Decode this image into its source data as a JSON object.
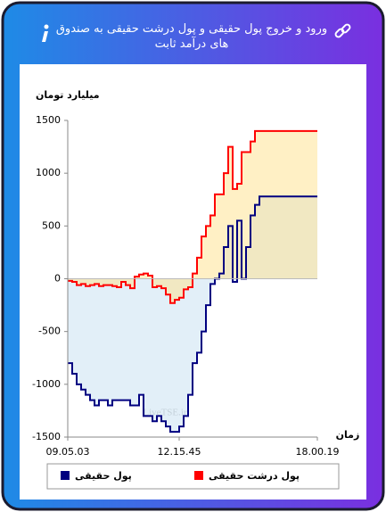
{
  "header": {
    "title": "ورود و خروج پول حقیقی و پول درشت حقیقی به صندوق های درآمد ثابت"
  },
  "chart_data": {
    "type": "line",
    "step": true,
    "area": true,
    "y_label": "میلیارد تومان",
    "x_label": "زمان",
    "watermark": "LiveTSE.ir",
    "categories": [
      "09.05.03",
      null,
      null,
      null,
      null,
      null,
      null,
      null,
      null,
      null,
      null,
      null,
      null,
      null,
      null,
      null,
      null,
      null,
      null,
      null,
      null,
      null,
      null,
      null,
      null,
      "12.15.45",
      null,
      null,
      null,
      null,
      null,
      null,
      null,
      null,
      null,
      null,
      null,
      null,
      null,
      null,
      null,
      null,
      null,
      null,
      null,
      null,
      null,
      null,
      null,
      null,
      null,
      null,
      null,
      null,
      null,
      null,
      "18.00.19"
    ],
    "series": [
      {
        "name": "پول حقیقی",
        "color": "#000080",
        "fill": "rgba(190,220,240,0.45)",
        "values": [
          -800,
          -900,
          -1000,
          -1050,
          -1100,
          -1150,
          -1200,
          -1150,
          -1150,
          -1200,
          -1150,
          -1150,
          -1150,
          -1150,
          -1200,
          -1200,
          -1100,
          -1300,
          -1300,
          -1350,
          -1300,
          -1350,
          -1400,
          -1450,
          -1450,
          -1400,
          -1300,
          -1100,
          -800,
          -700,
          -500,
          -250,
          -50,
          0,
          50,
          300,
          500,
          -30,
          550,
          0,
          300,
          600,
          700,
          780,
          780,
          780,
          780,
          780,
          780,
          780,
          780,
          780,
          780,
          780,
          780,
          780,
          780
        ]
      },
      {
        "name": "پول درشت حقیقی",
        "color": "#ff0000",
        "fill": "rgba(255,225,140,0.5)",
        "values": [
          -20,
          -30,
          -60,
          -50,
          -70,
          -60,
          -50,
          -70,
          -60,
          -60,
          -70,
          -80,
          -30,
          -60,
          -90,
          20,
          40,
          50,
          30,
          -80,
          -70,
          -90,
          -150,
          -230,
          -200,
          -180,
          -100,
          -80,
          50,
          200,
          400,
          500,
          600,
          800,
          800,
          1000,
          1250,
          850,
          900,
          1200,
          1200,
          1300,
          1400,
          1400,
          1400,
          1400,
          1400,
          1400,
          1400,
          1400,
          1400,
          1400,
          1400,
          1400,
          1400,
          1400,
          1400
        ]
      }
    ],
    "ylim": [
      -1500,
      1500
    ],
    "yticks": [
      -1500,
      -1000,
      -500,
      0,
      500,
      1000,
      1500
    ]
  }
}
